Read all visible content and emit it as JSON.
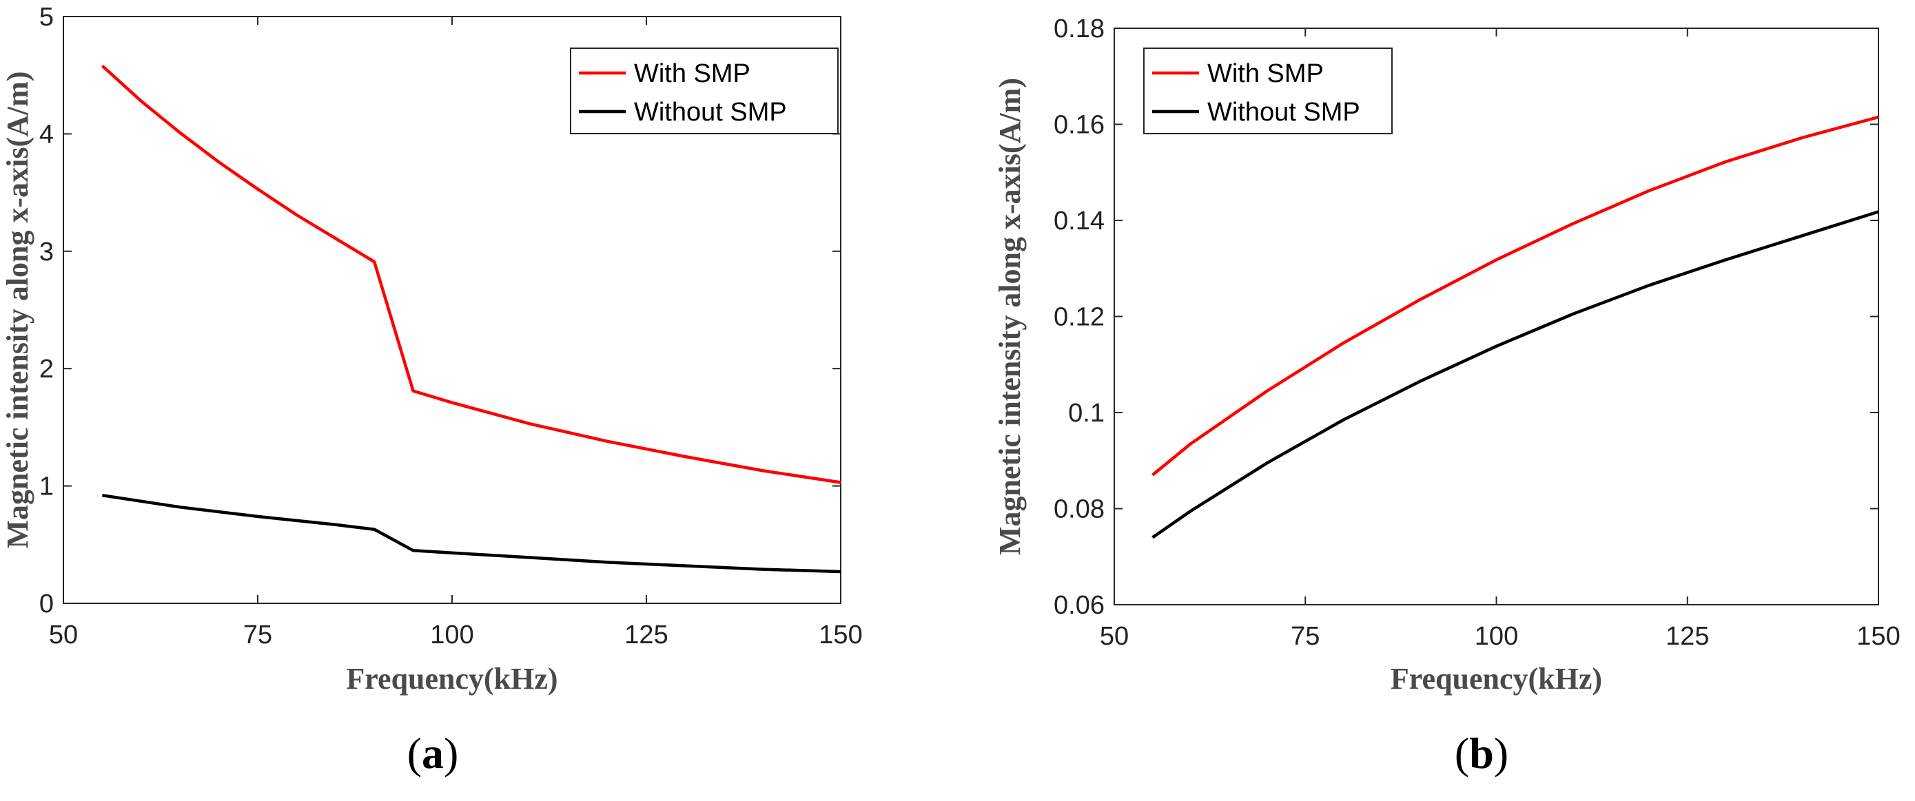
{
  "chart_data": [
    {
      "type": "line",
      "panel_label": "a",
      "xlabel": "Frequency(kHz)",
      "ylabel": "Magnetic intensity along x-axis(A/m)",
      "xlim": [
        50,
        150
      ],
      "ylim": [
        0,
        5
      ],
      "xticks": [
        50,
        75,
        100,
        125,
        150
      ],
      "yticks": [
        0,
        1,
        2,
        3,
        4,
        5
      ],
      "ytick_labels": [
        "0",
        "1",
        "2",
        "3",
        "4",
        "5"
      ],
      "legend_position": "top-right",
      "series": [
        {
          "name": "With SMP",
          "color": "#ff0000",
          "x": [
            55,
            60,
            65,
            70,
            75,
            80,
            85,
            90,
            95,
            100,
            110,
            120,
            130,
            140,
            150
          ],
          "y": [
            4.58,
            4.28,
            4.01,
            3.76,
            3.53,
            3.31,
            3.11,
            2.91,
            1.81,
            1.71,
            1.53,
            1.38,
            1.25,
            1.13,
            1.03
          ]
        },
        {
          "name": "Without SMP",
          "color": "#000000",
          "x": [
            55,
            65,
            75,
            85,
            90,
            95,
            100,
            110,
            120,
            130,
            140,
            150
          ],
          "y": [
            0.92,
            0.82,
            0.74,
            0.67,
            0.63,
            0.45,
            0.43,
            0.39,
            0.35,
            0.32,
            0.29,
            0.27
          ]
        }
      ]
    },
    {
      "type": "line",
      "panel_label": "b",
      "xlabel": "Frequency(kHz)",
      "ylabel": "Magnetic intensity along x-axis(A/m)",
      "xlim": [
        50,
        150
      ],
      "ylim": [
        0.06,
        0.18
      ],
      "xticks": [
        50,
        75,
        100,
        125,
        150
      ],
      "yticks": [
        0.06,
        0.08,
        0.1,
        0.12,
        0.14,
        0.16,
        0.18
      ],
      "ytick_labels": [
        "0.06",
        "0.08",
        "0.1",
        "0.12",
        "0.14",
        "0.16",
        "0.18"
      ],
      "legend_position": "top-left",
      "series": [
        {
          "name": "With SMP",
          "color": "#ff0000",
          "x": [
            55,
            60,
            70,
            80,
            90,
            100,
            110,
            120,
            130,
            140,
            150
          ],
          "y": [
            0.087,
            0.0935,
            0.1045,
            0.1145,
            0.1235,
            0.1318,
            0.1393,
            0.1462,
            0.1522,
            0.1572,
            0.1615
          ]
        },
        {
          "name": "Without SMP",
          "color": "#000000",
          "x": [
            55,
            60,
            70,
            80,
            90,
            100,
            110,
            120,
            130,
            140,
            150
          ],
          "y": [
            0.074,
            0.0795,
            0.0895,
            0.0985,
            0.1065,
            0.1138,
            0.1205,
            0.1265,
            0.1318,
            0.1368,
            0.1418
          ]
        }
      ]
    }
  ]
}
